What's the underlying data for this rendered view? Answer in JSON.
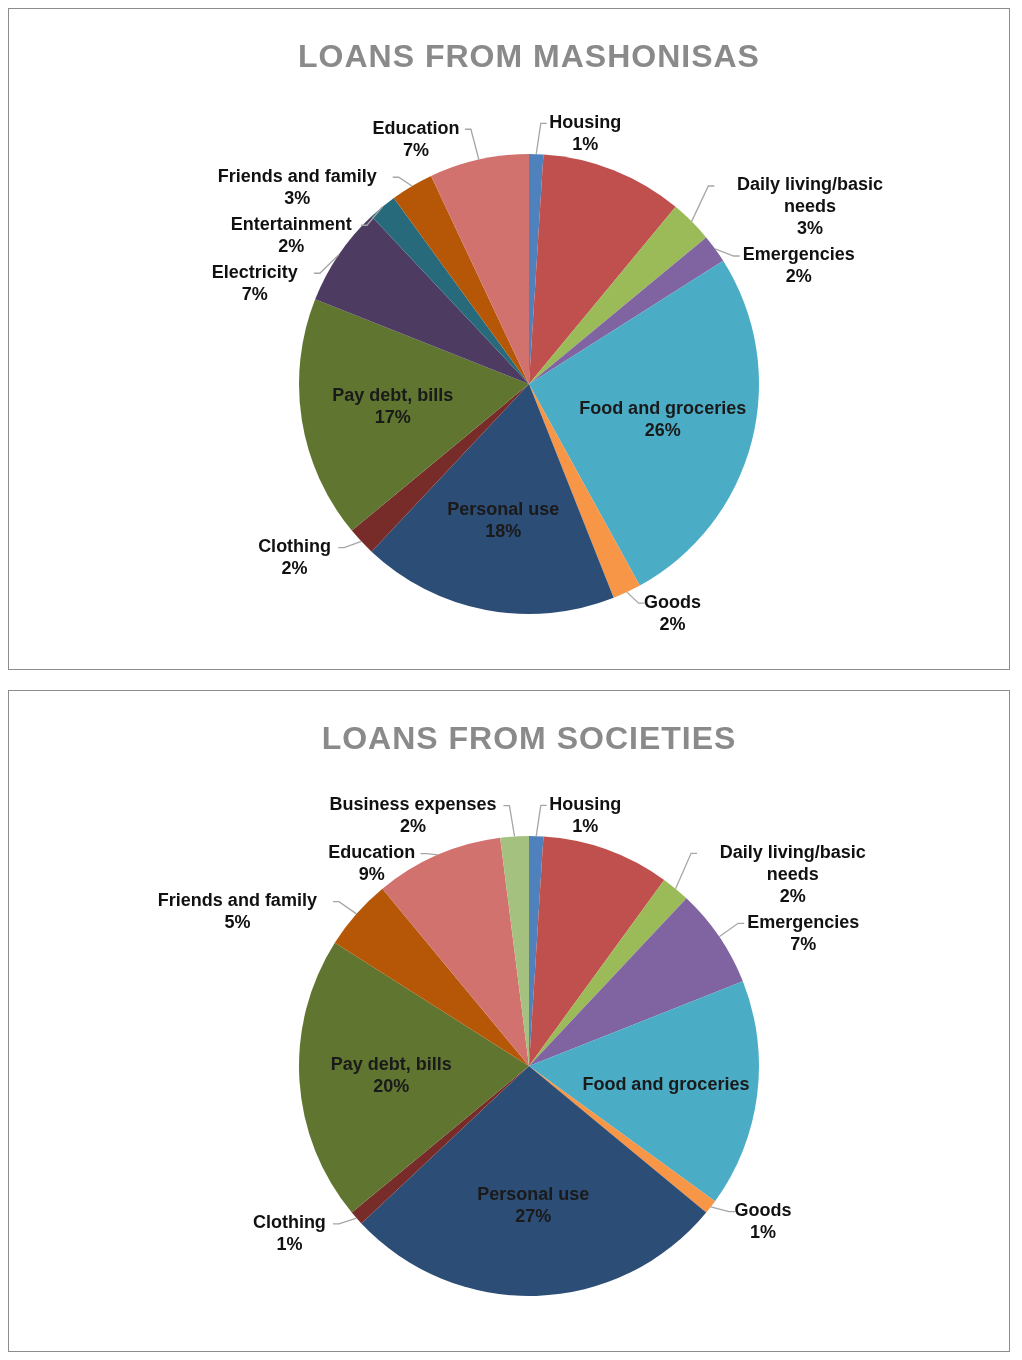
{
  "chart_data": [
    {
      "type": "pie",
      "title": "LOANS FROM MASHONISAS",
      "categories": [
        "Housing",
        null,
        "Daily living/basic needs",
        "Emergencies",
        "Food and groceries",
        "Goods",
        "Personal use",
        "Clothing",
        "Pay debt, bills",
        "Electricity",
        "Entertainment",
        "Friends and family",
        "Education"
      ],
      "values": [
        1,
        10,
        3,
        2,
        26,
        2,
        18,
        2,
        17,
        7,
        2,
        3,
        7
      ],
      "value_labels": [
        "1%",
        null,
        "3%",
        "2%",
        "26%",
        "2%",
        "18%",
        "2%",
        "17%",
        "7%",
        "2%",
        "3%",
        "7%"
      ],
      "colors": [
        "#4f81bd",
        "#c0504d",
        "#9bbb59",
        "#8064a2",
        "#4bacc6",
        "#f79646",
        "#2c4d75",
        "#772c2a",
        "#5f7530",
        "#4d3b62",
        "#276a7c",
        "#b65708",
        "#d2726f"
      ]
    },
    {
      "type": "pie",
      "title": "LOANS FROM SOCIETIES",
      "categories": [
        "Housing",
        null,
        "Daily living/basic needs",
        "Emergencies",
        "Food and groceries",
        "Goods",
        "Personal use",
        "Clothing",
        "Pay debt, bills",
        "Friends and family",
        "Education",
        "Business expenses"
      ],
      "values": [
        1,
        9,
        2,
        7,
        16,
        1,
        27,
        1,
        20,
        5,
        9,
        2
      ],
      "value_labels": [
        "1%",
        null,
        "2%",
        "7%",
        null,
        "1%",
        "27%",
        "1%",
        "20%",
        "5%",
        "9%",
        "2%"
      ],
      "colors": [
        "#4f81bd",
        "#c0504d",
        "#9bbb59",
        "#8064a2",
        "#4bacc6",
        "#f79646",
        "#2c4d75",
        "#772c2a",
        "#5f7530",
        "#b65708",
        "#d2726f",
        "#a5c17f"
      ]
    }
  ]
}
